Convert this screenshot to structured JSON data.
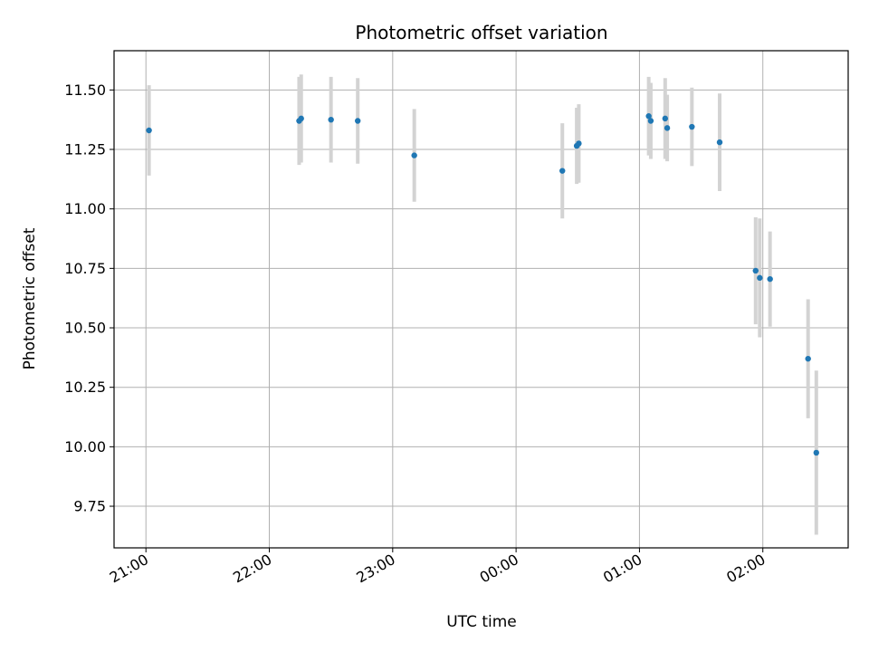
{
  "chart_data": {
    "type": "scatter",
    "title": "Photometric offset variation",
    "xlabel": "UTC time",
    "ylabel": "Photometric offset",
    "x_ticks": [
      "21:00",
      "22:00",
      "23:00",
      "00:00",
      "01:00",
      "02:00"
    ],
    "y_ticks": [
      "9.75",
      "10.00",
      "10.25",
      "10.50",
      "10.75",
      "11.00",
      "11.25",
      "11.50"
    ],
    "x_unit": "minutes after 21:00 UTC",
    "xlim": [
      -15.5,
      341.5
    ],
    "ylim": [
      9.575,
      11.665
    ],
    "grid": true,
    "colors": {
      "point": "#1f77b4",
      "errorbar": "#d3d3d3",
      "grid": "#b0b0b0"
    },
    "points": [
      {
        "t": 1.5,
        "y": 11.33,
        "err": 0.19
      },
      {
        "t": 74.5,
        "y": 11.37,
        "err": 0.185
      },
      {
        "t": 75.5,
        "y": 11.38,
        "err": 0.185
      },
      {
        "t": 90,
        "y": 11.375,
        "err": 0.18
      },
      {
        "t": 103,
        "y": 11.37,
        "err": 0.18
      },
      {
        "t": 130.5,
        "y": 11.225,
        "err": 0.195
      },
      {
        "t": 202.5,
        "y": 11.16,
        "err": 0.2
      },
      {
        "t": 209.5,
        "y": 11.265,
        "err": 0.16
      },
      {
        "t": 210.5,
        "y": 11.275,
        "err": 0.165
      },
      {
        "t": 244.5,
        "y": 11.39,
        "err": 0.165
      },
      {
        "t": 245.5,
        "y": 11.37,
        "err": 0.16
      },
      {
        "t": 252.5,
        "y": 11.38,
        "err": 0.17
      },
      {
        "t": 253.5,
        "y": 11.34,
        "err": 0.14
      },
      {
        "t": 265.5,
        "y": 11.345,
        "err": 0.165
      },
      {
        "t": 279,
        "y": 11.28,
        "err": 0.205
      },
      {
        "t": 296.5,
        "y": 10.74,
        "err": 0.225
      },
      {
        "t": 298.5,
        "y": 10.71,
        "err": 0.25
      },
      {
        "t": 303.5,
        "y": 10.705,
        "err": 0.2
      },
      {
        "t": 322,
        "y": 10.37,
        "err": 0.25
      },
      {
        "t": 326,
        "y": 9.975,
        "err": 0.345
      }
    ]
  }
}
